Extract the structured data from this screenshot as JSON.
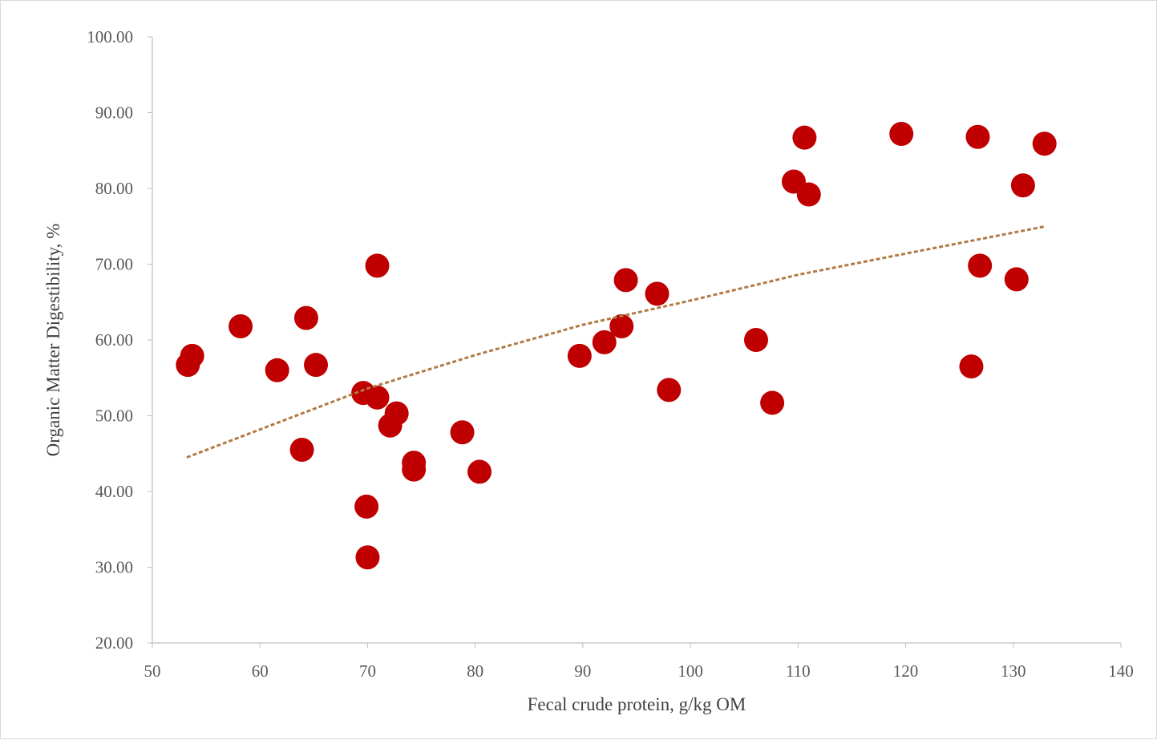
{
  "chart_data": {
    "type": "scatter",
    "title": "",
    "xlabel": "Fecal crude protein, g/kg OM",
    "ylabel": "Organic Matter Digestibility, %",
    "xlim": [
      50,
      140
    ],
    "ylim": [
      20,
      100
    ],
    "x_ticks": [
      "50",
      "60",
      "70",
      "80",
      "90",
      "100",
      "110",
      "120",
      "130",
      "140"
    ],
    "y_ticks": [
      "20.00",
      "30.00",
      "40.00",
      "50.00",
      "60.00",
      "70.00",
      "80.00",
      "90.00",
      "100.00"
    ],
    "grid": false,
    "legend": "none",
    "marker_color": "#C00000",
    "trendline": {
      "type": "logarithmic",
      "style": "dashed",
      "color": "#B07A45",
      "x_range": [
        53.2,
        133.0
      ],
      "points": [
        [
          53.2,
          44.5
        ],
        [
          70,
          53.6
        ],
        [
          80,
          58.0
        ],
        [
          90,
          62.0
        ],
        [
          100,
          65.2
        ],
        [
          110,
          68.6
        ],
        [
          120,
          71.4
        ],
        [
          133,
          75.0
        ]
      ]
    },
    "series": [
      {
        "points": [
          [
            53.3,
            56.7
          ],
          [
            53.7,
            57.9
          ],
          [
            58.2,
            61.8
          ],
          [
            61.6,
            56.0
          ],
          [
            63.9,
            45.5
          ],
          [
            64.3,
            62.9
          ],
          [
            65.2,
            56.7
          ],
          [
            69.6,
            53.0
          ],
          [
            69.9,
            38.0
          ],
          [
            70.0,
            31.3
          ],
          [
            70.9,
            52.4
          ],
          [
            70.9,
            69.8
          ],
          [
            72.1,
            48.7
          ],
          [
            72.7,
            50.3
          ],
          [
            74.3,
            43.8
          ],
          [
            74.3,
            42.9
          ],
          [
            78.8,
            47.8
          ],
          [
            80.4,
            42.6
          ],
          [
            89.7,
            57.9
          ],
          [
            92.0,
            59.7
          ],
          [
            93.6,
            61.8
          ],
          [
            94.0,
            67.9
          ],
          [
            96.9,
            66.1
          ],
          [
            98.0,
            53.4
          ],
          [
            106.1,
            60.0
          ],
          [
            107.6,
            51.7
          ],
          [
            109.6,
            80.9
          ],
          [
            110.6,
            86.7
          ],
          [
            111.0,
            79.2
          ],
          [
            119.6,
            87.2
          ],
          [
            126.1,
            56.5
          ],
          [
            126.7,
            86.8
          ],
          [
            126.9,
            69.8
          ],
          [
            130.3,
            68.0
          ],
          [
            130.9,
            80.4
          ],
          [
            132.9,
            85.9
          ]
        ]
      }
    ]
  }
}
